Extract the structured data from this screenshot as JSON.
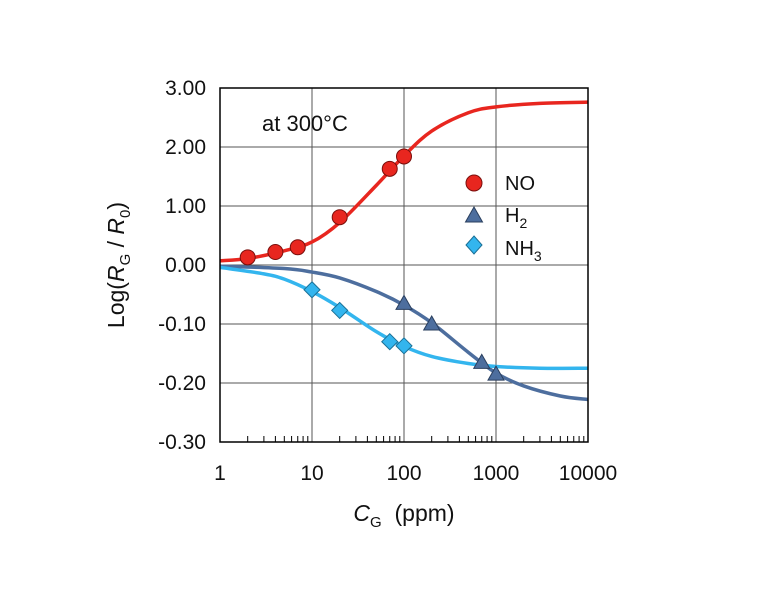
{
  "chart_data": {
    "type": "scatter",
    "annotation": "at 300°C",
    "xlabel": {
      "main": "C",
      "sub": "G",
      "rest": "  (ppm)"
    },
    "ylabel": {
      "pre": "Log(",
      "r1": "R",
      "s1": "G",
      "mid": " / ",
      "r2": "R",
      "s2": "0",
      "post": ")"
    },
    "x_scale": "log",
    "xlim": [
      1,
      10000
    ],
    "x_ticks": [
      "1",
      "10",
      "100",
      "1000",
      "10000"
    ],
    "y_ticks": [
      "3.00",
      "2.00",
      "1.00",
      "0.00",
      "-0.10",
      "-0.20",
      "-0.30"
    ],
    "grid": true,
    "legend_position": "right, inside plot",
    "series": [
      {
        "name": "NO",
        "marker": "circle",
        "color": "#e8261f",
        "points": [
          [
            2,
            0.13
          ],
          [
            4,
            0.22
          ],
          [
            7,
            0.3
          ],
          [
            20,
            0.81
          ],
          [
            70,
            1.63
          ],
          [
            100,
            1.84
          ]
        ],
        "fit": [
          [
            1,
            0.07
          ],
          [
            2,
            0.11
          ],
          [
            5,
            0.24
          ],
          [
            10,
            0.39
          ],
          [
            20,
            0.72
          ],
          [
            50,
            1.35
          ],
          [
            100,
            1.85
          ],
          [
            200,
            2.27
          ],
          [
            500,
            2.58
          ],
          [
            1000,
            2.68
          ],
          [
            3000,
            2.74
          ],
          [
            10000,
            2.76
          ]
        ]
      },
      {
        "name": "H2",
        "name_main": "H",
        "name_sub": "2",
        "marker": "triangle",
        "color": "#4d6e9e",
        "points": [
          [
            100,
            -0.065
          ],
          [
            200,
            -0.1
          ],
          [
            700,
            -0.165
          ],
          [
            1000,
            -0.185
          ]
        ],
        "fit": [
          [
            1,
            -0.002
          ],
          [
            5,
            -0.006
          ],
          [
            10,
            -0.012
          ],
          [
            20,
            -0.022
          ],
          [
            50,
            -0.045
          ],
          [
            100,
            -0.068
          ],
          [
            200,
            -0.098
          ],
          [
            500,
            -0.148
          ],
          [
            1000,
            -0.183
          ],
          [
            2000,
            -0.205
          ],
          [
            5000,
            -0.222
          ],
          [
            10000,
            -0.228
          ]
        ]
      },
      {
        "name": "NH3",
        "name_main": "NH",
        "name_sub": "3",
        "marker": "diamond",
        "color": "#33b5ee",
        "points": [
          [
            10,
            -0.042
          ],
          [
            20,
            -0.077
          ],
          [
            70,
            -0.13
          ],
          [
            100,
            -0.137
          ]
        ],
        "fit": [
          [
            1,
            -0.004
          ],
          [
            3,
            -0.015
          ],
          [
            5,
            -0.024
          ],
          [
            10,
            -0.045
          ],
          [
            20,
            -0.072
          ],
          [
            50,
            -0.113
          ],
          [
            100,
            -0.138
          ],
          [
            200,
            -0.155
          ],
          [
            500,
            -0.167
          ],
          [
            1000,
            -0.172
          ],
          [
            3000,
            -0.175
          ],
          [
            10000,
            -0.175
          ]
        ]
      }
    ]
  }
}
